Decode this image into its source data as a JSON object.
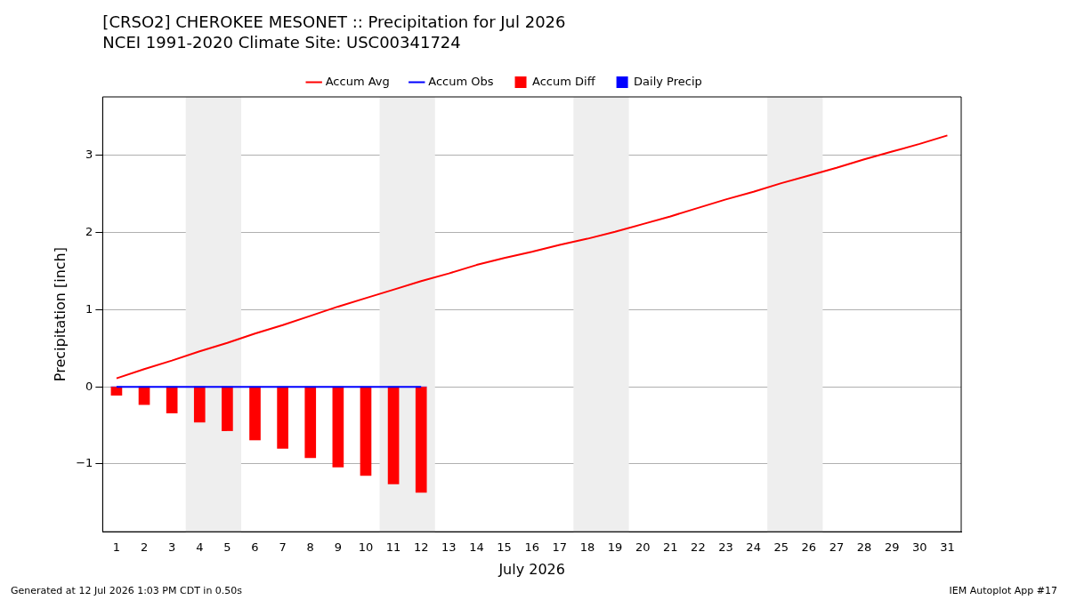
{
  "chart_data": {
    "type": "line",
    "title": "[CRSO2] CHEROKEE MESONET :: Precipitation for Jul 2026",
    "subtitle": "NCEI 1991-2020 Climate Site: USC00341724",
    "xlabel": "July 2026",
    "ylabel": "Precipitation [inch]",
    "x": [
      1,
      2,
      3,
      4,
      5,
      6,
      7,
      8,
      9,
      10,
      11,
      12,
      13,
      14,
      15,
      16,
      17,
      18,
      19,
      20,
      21,
      22,
      23,
      24,
      25,
      26,
      27,
      28,
      29,
      30,
      31
    ],
    "series": [
      {
        "name": "Accum Avg",
        "color": "#ff0000",
        "values": [
          0.11,
          0.23,
          0.34,
          0.46,
          0.57,
          0.69,
          0.8,
          0.92,
          1.04,
          1.15,
          1.26,
          1.37,
          1.47,
          1.58,
          1.67,
          1.75,
          1.84,
          1.92,
          2.01,
          2.11,
          2.21,
          2.32,
          2.43,
          2.53,
          2.64,
          2.74,
          2.84,
          2.95,
          3.05,
          3.15,
          3.26
        ]
      },
      {
        "name": "Accum Obs",
        "color": "#0000ff",
        "x": [
          1,
          2,
          3,
          4,
          5,
          6,
          7,
          8,
          9,
          10,
          11,
          12
        ],
        "values": [
          0,
          0,
          0,
          0,
          0,
          0,
          0,
          0,
          0,
          0,
          0,
          0
        ]
      },
      {
        "name": "Accum Diff",
        "type": "bar",
        "color": "#ff0000",
        "x": [
          1,
          2,
          3,
          4,
          5,
          6,
          7,
          8,
          9,
          10,
          11,
          12
        ],
        "values": [
          -0.11,
          -0.23,
          -0.34,
          -0.46,
          -0.57,
          -0.69,
          -0.8,
          -0.92,
          -1.04,
          -1.15,
          -1.26,
          -1.37
        ]
      },
      {
        "name": "Daily Precip",
        "type": "bar",
        "color": "#0000ff",
        "x": [
          1,
          2,
          3,
          4,
          5,
          6,
          7,
          8,
          9,
          10,
          11,
          12
        ],
        "values": [
          0,
          0,
          0,
          0,
          0,
          0,
          0,
          0,
          0,
          0,
          0,
          0
        ]
      }
    ],
    "xlim": [
      0.5,
      31.5
    ],
    "xticks": [
      1,
      2,
      3,
      4,
      5,
      6,
      7,
      8,
      9,
      10,
      11,
      12,
      13,
      14,
      15,
      16,
      17,
      18,
      19,
      20,
      21,
      22,
      23,
      24,
      25,
      26,
      27,
      28,
      29,
      30,
      31
    ],
    "ylim": [
      -1.88,
      3.76
    ],
    "yticks": [
      {
        "value": -1,
        "label": "−1"
      },
      0,
      1,
      2,
      3
    ],
    "bands": [
      {
        "axis": "x",
        "from": 3.5,
        "to": 5.5,
        "color": "#eeeeee"
      },
      {
        "axis": "x",
        "from": 10.5,
        "to": 12.5,
        "color": "#eeeeee"
      },
      {
        "axis": "x",
        "from": 17.5,
        "to": 19.5,
        "color": "#eeeeee"
      },
      {
        "axis": "x",
        "from": 24.5,
        "to": 26.5,
        "color": "#eeeeee"
      }
    ],
    "grid": "y",
    "legend": "top",
    "marker": "none",
    "line_style": "solid",
    "annotations": [
      "Generated at 12 Jul 2026 1:03 PM CDT in 0.50s",
      "IEM Autoplot App #17"
    ]
  }
}
